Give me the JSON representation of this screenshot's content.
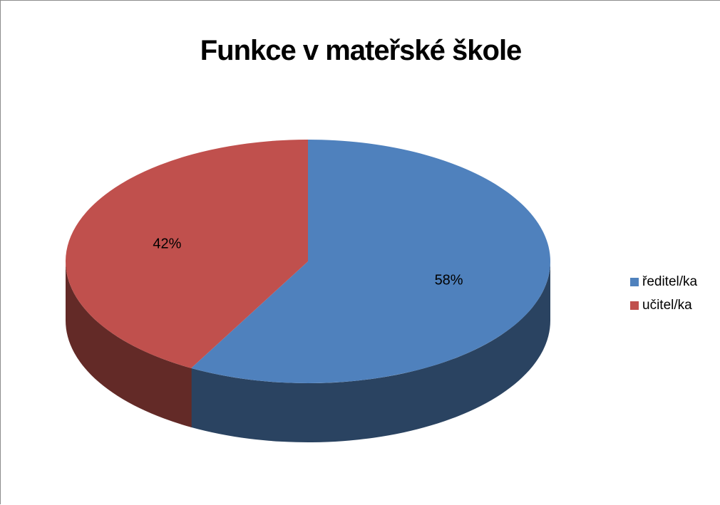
{
  "chart_data": {
    "type": "pie",
    "title": "Funkce v mateřské škole",
    "categories": [
      "ředitel/ka",
      "učitel/ka"
    ],
    "values": [
      58,
      42
    ],
    "data_labels": [
      "58%",
      "42%"
    ],
    "colors": [
      "#4F81BD",
      "#C0504D"
    ],
    "side_colors": [
      "#2A4361",
      "#632A27"
    ],
    "legend_position": "right",
    "style": "3d"
  }
}
